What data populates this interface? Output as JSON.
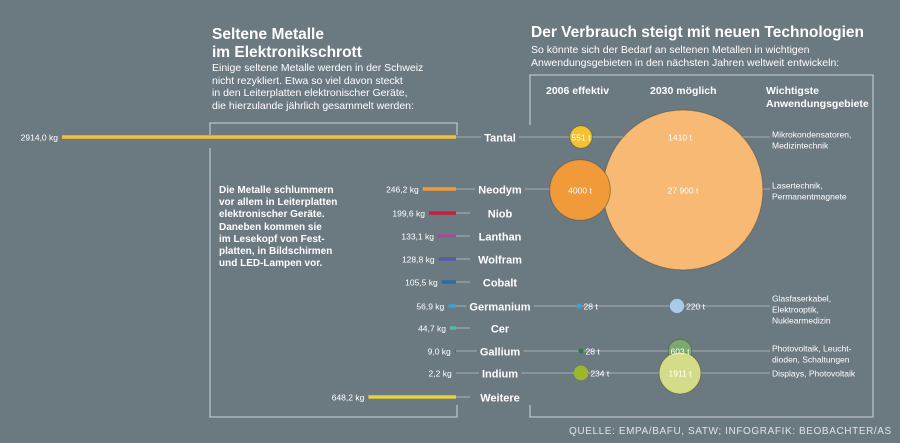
{
  "left": {
    "title_line1": "Seltene Metalle",
    "title_line2": "im Elektronikschrott",
    "intro": [
      "Einige seltene Metalle werden in der Schweiz",
      "nicht rezykliert. Etwa so viel davon steckt",
      "in den Leiterplatten elektronischer Geräte,",
      "die hierzulande jährlich gesammelt werden:"
    ],
    "note": [
      "Die Metalle schlummern",
      "vor allem in Leiterplatten",
      "elektronischer Geräte.",
      "Daneben kommen sie",
      "im Lesekopf von Fest-",
      "platten, in Bildschirmen",
      "und LED-Lampen vor."
    ]
  },
  "right": {
    "title": "Der Verbrauch steigt mit neuen Technologien",
    "intro": [
      "So könnte sich der Bedarf an seltenen Metallen in wichtigen",
      "Anwendungsgebieten in den nächsten Jahren weltweit entwickeln:"
    ],
    "col_2006": "2006 effektiv",
    "col_2030": "2030 möglich",
    "col_uses": [
      "Wichtigste",
      "Anwendungsgebiete"
    ]
  },
  "source": "QUELLE: EMPA/BAFU, SATW; INFOGRAFIK: BEOBACHTER/AS",
  "chart_data": [
    {
      "type": "bar",
      "unit": "kg",
      "categories": [
        "Tantal",
        "Neodym",
        "Niob",
        "Lanthan",
        "Wolfram",
        "Cobalt",
        "Germanium",
        "Cer",
        "Gallium",
        "Indium",
        "Weitere"
      ],
      "values": [
        2914.0,
        246.2,
        199.6,
        133.1,
        128.8,
        105.5,
        56.9,
        44.7,
        9.0,
        2.2,
        648.2
      ],
      "value_labels": [
        "2914,0 kg",
        "246,2 kg",
        "199,6 kg",
        "133,1 kg",
        "128,8 kg",
        "105,5 kg",
        "56,9 kg",
        "44,7 kg",
        "9,0 kg",
        "2,2 kg",
        "648,2 kg"
      ],
      "colors": [
        "#f2c232",
        "#f09a3a",
        "#c8203c",
        "#9b4f9a",
        "#5a5aa0",
        "#2f6aa8",
        "#3aa0d8",
        "#4fb8a0",
        "#2e8b3e",
        "#9ab82a",
        "#e8d040"
      ]
    },
    {
      "type": "bubble",
      "unit": "t",
      "categories": [
        "Tantal",
        "Neodym",
        "Germanium",
        "Gallium",
        "Indium"
      ],
      "series": [
        {
          "name": "2006 effektiv",
          "values": [
            551,
            4000,
            28,
            28,
            234
          ],
          "labels": [
            "551 t",
            "4000 t",
            "28 t",
            "28 t",
            "234 t"
          ],
          "colors": [
            "#f2c232",
            "#f09a3a",
            "#3aa0d8",
            "#2e7d3e",
            "#9ab82a"
          ]
        },
        {
          "name": "2030 möglich",
          "values": [
            1410,
            27900,
            220,
            603,
            1911
          ],
          "labels": [
            "1410 t",
            "27 900 t",
            "220 t",
            "603 t",
            "1911 t"
          ],
          "colors": [
            "#f7d77a",
            "#f7b974",
            "#a9cbea",
            "#7aa870",
            "#d4dc88"
          ]
        }
      ],
      "uses": [
        [
          "Mikrokondensatoren,",
          "Medizintechnik"
        ],
        [
          "Lasertechnik,",
          "Permanentmagnete"
        ],
        [
          "Glasfaserkabel,",
          "Elektrooptik,",
          "Nuklearmedizin"
        ],
        [
          "Photovoltaik, Leucht-",
          "dioden, Schaltungen"
        ],
        [
          "Displays, Photovoltaik"
        ]
      ]
    }
  ]
}
